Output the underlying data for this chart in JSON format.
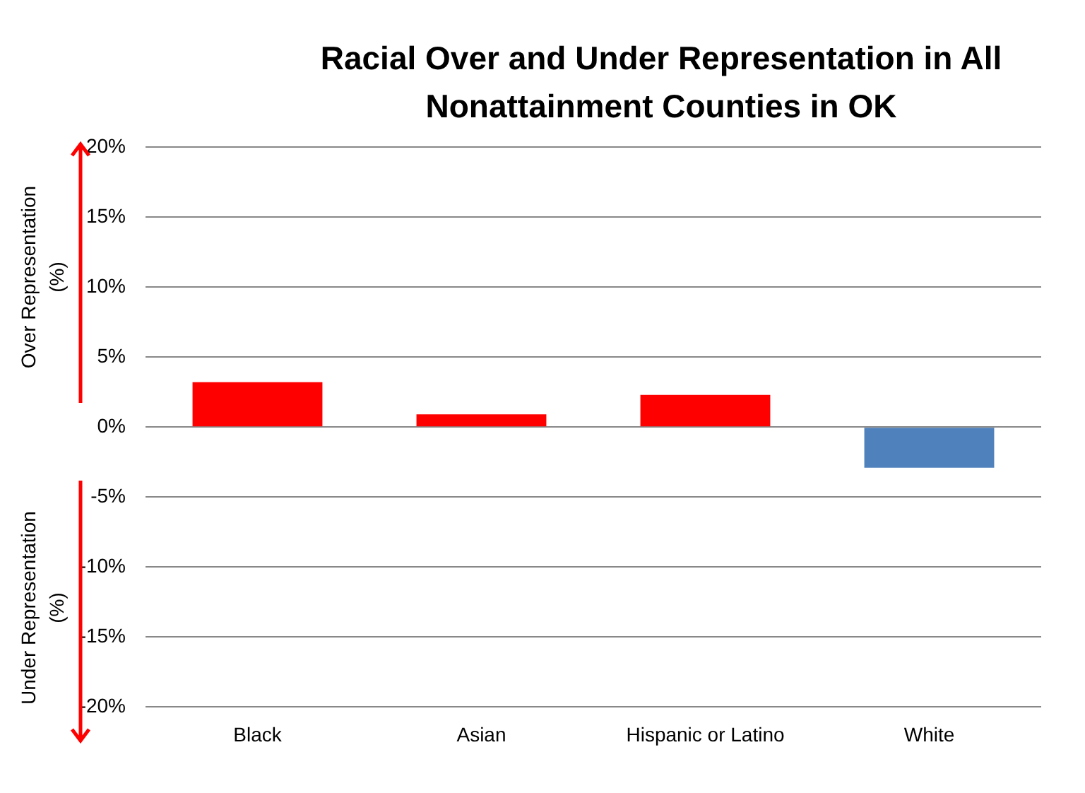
{
  "chart_data": {
    "type": "bar",
    "title": "Racial Over and Under Representation in All Nonattainment Counties in OK",
    "categories": [
      "Black",
      "Asian",
      "Hispanic or Latino",
      "White"
    ],
    "values": [
      3.2,
      0.9,
      2.3,
      -2.9
    ],
    "colors": [
      "#ff0000",
      "#ff0000",
      "#ff0000",
      "#4f81bd"
    ],
    "ylim": [
      -20,
      20
    ],
    "yticks": [
      {
        "value": -20,
        "label": "-20%"
      },
      {
        "value": -15,
        "label": "-15%"
      },
      {
        "value": -10,
        "label": "-10%"
      },
      {
        "value": -5,
        "label": "-5%"
      },
      {
        "value": 0,
        "label": "0%"
      },
      {
        "value": 5,
        "label": "5%"
      },
      {
        "value": 10,
        "label": "10%"
      },
      {
        "value": 15,
        "label": "15%"
      },
      {
        "value": 20,
        "label": "20%"
      }
    ],
    "annotations": [
      "Over Representation (%)",
      "Under Representation (%)"
    ],
    "grid": "y",
    "legend": false
  }
}
